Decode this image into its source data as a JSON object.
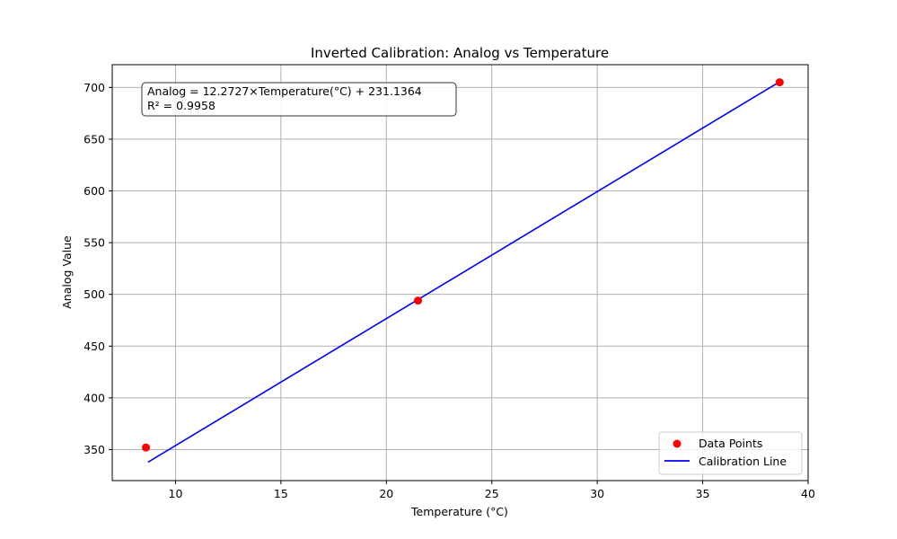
{
  "chart_data": {
    "type": "scatter",
    "title": "Inverted Calibration: Analog vs Temperature",
    "xlabel": "Temperature (°C)",
    "ylabel": "Analog Value",
    "xlim": [
      7.0,
      40.0
    ],
    "ylim": [
      320,
      722
    ],
    "xticks": [
      10,
      15,
      20,
      25,
      30,
      35,
      40
    ],
    "yticks": [
      350,
      400,
      450,
      500,
      550,
      600,
      650,
      700
    ],
    "grid": true,
    "legend_position": "lower-right",
    "series": [
      {
        "name": "Data Points",
        "kind": "scatter",
        "color": "#ff0000",
        "x": [
          8.6,
          21.5,
          38.65
        ],
        "y": [
          352,
          494,
          705
        ]
      },
      {
        "name": "Calibration Line",
        "kind": "line",
        "color": "#0000ff",
        "x": [
          8.7,
          21.5,
          38.65
        ],
        "y": [
          337.9,
          495.0,
          705.5
        ]
      }
    ],
    "annotation": {
      "line1": "Analog = 12.2727×Temperature(°C) + 231.1364",
      "line2": "R² = 0.9958"
    }
  }
}
